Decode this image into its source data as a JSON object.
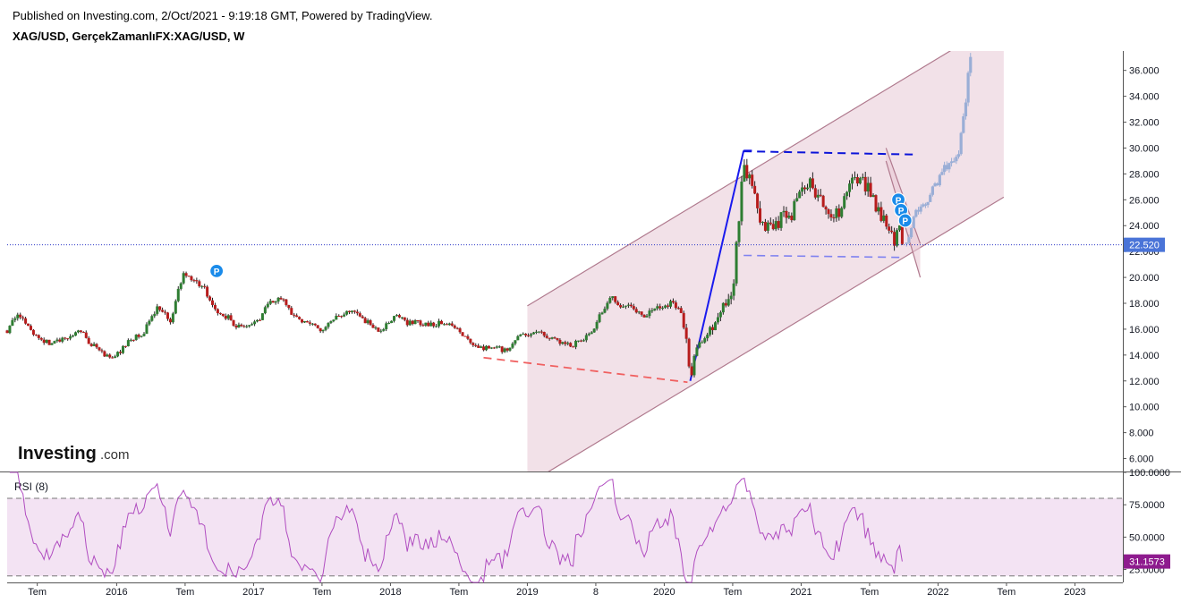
{
  "header": {
    "published": "Published on Investing.com, 2/Oct/2021 - 9:19:18 GMT, Powered by TradingView.",
    "symbol": "XAG/USD, GerçekZamanlıFX:XAG/USD, W"
  },
  "logo": {
    "main": "Investing",
    "suffix": ".com"
  },
  "colors": {
    "up": "#2e7d32",
    "down": "#b71c1c",
    "wick": "#222222",
    "channel_fill": "#f0dce4",
    "channel_line": "#b07a8e",
    "trend_blue": "#1a1aee",
    "resistance_dash": "#0b14d9",
    "support_dash": "#7f82f0",
    "red_dash": "#f06060",
    "projection": "#9aaed6",
    "price_line": "#2a36c8",
    "price_badge": "#4a74d8",
    "rsi_badge": "#8e1b8e",
    "rsi_line": "#b04cc0",
    "rsi_band": "#f3e3f3",
    "pivot": "#1a8bea"
  },
  "pivot_label": "P",
  "chart_data": {
    "type": "candlestick",
    "interval": "W",
    "symbol": "XAG/USD",
    "yaxis": {
      "min": 5.0,
      "max": 37.5,
      "ticks": [
        6,
        8,
        10,
        12,
        14,
        16,
        18,
        20,
        22,
        24,
        26,
        28,
        30,
        32,
        34,
        36
      ],
      "tick_labels": [
        "6.000",
        "8.000",
        "10.000",
        "12.000",
        "14.000",
        "16.000",
        "18.000",
        "20.000",
        "22.000",
        "24.000",
        "26.000",
        "28.000",
        "30.000",
        "32.000",
        "34.000",
        "36.000"
      ]
    },
    "xaxis": {
      "start": 2015.2,
      "end": 2023.35,
      "ticks": [
        {
          "t": 2015.42,
          "label": "Tem"
        },
        {
          "t": 2016.0,
          "label": "2016"
        },
        {
          "t": 2016.5,
          "label": "Tem"
        },
        {
          "t": 2017.0,
          "label": "2017"
        },
        {
          "t": 2017.5,
          "label": "Tem"
        },
        {
          "t": 2018.0,
          "label": "2018"
        },
        {
          "t": 2018.5,
          "label": "Tem"
        },
        {
          "t": 2019.0,
          "label": "2019"
        },
        {
          "t": 2019.5,
          "label": "8"
        },
        {
          "t": 2020.0,
          "label": "2020"
        },
        {
          "t": 2020.5,
          "label": "Tem"
        },
        {
          "t": 2021.0,
          "label": "2021"
        },
        {
          "t": 2021.5,
          "label": "Tem"
        },
        {
          "t": 2022.0,
          "label": "2022"
        },
        {
          "t": 2022.5,
          "label": "Tem"
        },
        {
          "t": 2023.0,
          "label": "2023"
        }
      ]
    },
    "last_price": 22.52,
    "last_price_label": "22.520",
    "price_anchors": [
      [
        2015.2,
        15.9
      ],
      [
        2015.28,
        17.4
      ],
      [
        2015.38,
        15.8
      ],
      [
        2015.5,
        14.9
      ],
      [
        2015.62,
        15.2
      ],
      [
        2015.72,
        16.0
      ],
      [
        2015.8,
        15.0
      ],
      [
        2015.92,
        13.9
      ],
      [
        2016.0,
        14.0
      ],
      [
        2016.08,
        15.0
      ],
      [
        2016.2,
        15.8
      ],
      [
        2016.3,
        17.7
      ],
      [
        2016.4,
        16.5
      ],
      [
        2016.48,
        20.3
      ],
      [
        2016.55,
        19.8
      ],
      [
        2016.62,
        19.5
      ],
      [
        2016.72,
        17.4
      ],
      [
        2016.8,
        17.0
      ],
      [
        2016.88,
        16.2
      ],
      [
        2016.95,
        16.0
      ],
      [
        2017.05,
        16.9
      ],
      [
        2017.12,
        18.1
      ],
      [
        2017.22,
        18.3
      ],
      [
        2017.3,
        16.8
      ],
      [
        2017.4,
        16.7
      ],
      [
        2017.5,
        15.6
      ],
      [
        2017.56,
        16.6
      ],
      [
        2017.64,
        17.0
      ],
      [
        2017.72,
        17.4
      ],
      [
        2017.8,
        16.8
      ],
      [
        2017.92,
        15.9
      ],
      [
        2018.05,
        17.0
      ],
      [
        2018.12,
        16.5
      ],
      [
        2018.22,
        16.5
      ],
      [
        2018.32,
        16.4
      ],
      [
        2018.42,
        16.5
      ],
      [
        2018.5,
        15.9
      ],
      [
        2018.58,
        15.0
      ],
      [
        2018.66,
        14.5
      ],
      [
        2018.75,
        14.6
      ],
      [
        2018.85,
        14.3
      ],
      [
        2018.95,
        15.5
      ],
      [
        2019.05,
        15.8
      ],
      [
        2019.12,
        15.5
      ],
      [
        2019.22,
        15.1
      ],
      [
        2019.32,
        14.7
      ],
      [
        2019.42,
        15.3
      ],
      [
        2019.5,
        16.3
      ],
      [
        2019.6,
        18.6
      ],
      [
        2019.68,
        17.6
      ],
      [
        2019.75,
        17.7
      ],
      [
        2019.85,
        16.9
      ],
      [
        2019.95,
        17.8
      ],
      [
        2020.05,
        18.0
      ],
      [
        2020.12,
        17.5
      ],
      [
        2020.17,
        14.8
      ],
      [
        2020.19,
        12.2
      ],
      [
        2020.23,
        14.3
      ],
      [
        2020.3,
        15.3
      ],
      [
        2020.36,
        16.5
      ],
      [
        2020.44,
        17.8
      ],
      [
        2020.5,
        18.9
      ],
      [
        2020.54,
        24.2
      ],
      [
        2020.58,
        28.2
      ],
      [
        2020.63,
        27.5
      ],
      [
        2020.7,
        24.2
      ],
      [
        2020.78,
        23.8
      ],
      [
        2020.86,
        24.6
      ],
      [
        2020.92,
        24.6
      ],
      [
        2021.0,
        26.8
      ],
      [
        2021.06,
        27.7
      ],
      [
        2021.12,
        26.3
      ],
      [
        2021.2,
        25.3
      ],
      [
        2021.28,
        24.8
      ],
      [
        2021.34,
        26.8
      ],
      [
        2021.4,
        27.8
      ],
      [
        2021.48,
        27.0
      ],
      [
        2021.55,
        25.5
      ],
      [
        2021.62,
        24.2
      ],
      [
        2021.68,
        22.7
      ],
      [
        2021.72,
        23.6
      ],
      [
        2021.75,
        22.5
      ]
    ],
    "projection_anchors": [
      [
        2021.77,
        22.6
      ],
      [
        2021.82,
        24.8
      ],
      [
        2021.9,
        25.6
      ],
      [
        2021.98,
        27.2
      ],
      [
        2022.06,
        28.5
      ],
      [
        2022.14,
        29.4
      ],
      [
        2022.18,
        31.5
      ],
      [
        2022.22,
        35.5
      ],
      [
        2022.25,
        37.5
      ]
    ],
    "channel": {
      "lower": [
        [
          2019.0,
          4.0
        ],
        [
          2022.48,
          26.2
        ]
      ],
      "upper": [
        [
          2019.0,
          17.8
        ],
        [
          2022.48,
          40.0
        ]
      ],
      "left_edge_t": 2019.0,
      "right_edge_t": 2022.48
    },
    "falling_wedge": {
      "upper": [
        [
          2021.62,
          30.0
        ],
        [
          2021.87,
          22.6
        ]
      ],
      "lower": [
        [
          2021.62,
          29.0
        ],
        [
          2021.87,
          20.0
        ]
      ]
    },
    "lines": [
      {
        "name": "rally-trendline",
        "style": "solid",
        "from": [
          2020.19,
          12.0
        ],
        "to": [
          2020.58,
          29.8
        ]
      },
      {
        "name": "top-cap",
        "style": "solid",
        "from": [
          2020.58,
          29.8
        ],
        "to": [
          2020.64,
          29.8
        ]
      },
      {
        "name": "resistance",
        "style": "dashed",
        "from": [
          2020.58,
          29.75
        ],
        "to": [
          2021.82,
          29.5
        ]
      },
      {
        "name": "support",
        "style": "dashed",
        "from": [
          2020.58,
          21.7
        ],
        "to": [
          2021.72,
          21.55
        ]
      },
      {
        "name": "red-support",
        "style": "dashed",
        "from": [
          2018.68,
          13.8
        ],
        "to": [
          2020.17,
          11.9
        ]
      }
    ],
    "pivots": [
      {
        "t": 2016.73,
        "p": 20.5
      },
      {
        "t": 2021.71,
        "p": 26.0
      },
      {
        "t": 2021.73,
        "p": 25.2
      },
      {
        "t": 2021.76,
        "p": 24.4
      }
    ],
    "rsi": {
      "label": "RSI (8)",
      "period": 8,
      "min": 15,
      "max": 100,
      "upper_band": 80,
      "lower_band": 20,
      "ticks": [
        25,
        50,
        75,
        100
      ],
      "tick_labels": [
        "25.0000",
        "50.0000",
        "75.0000",
        "100.0000"
      ],
      "last": 31.1573,
      "last_label": "31.1573"
    }
  }
}
